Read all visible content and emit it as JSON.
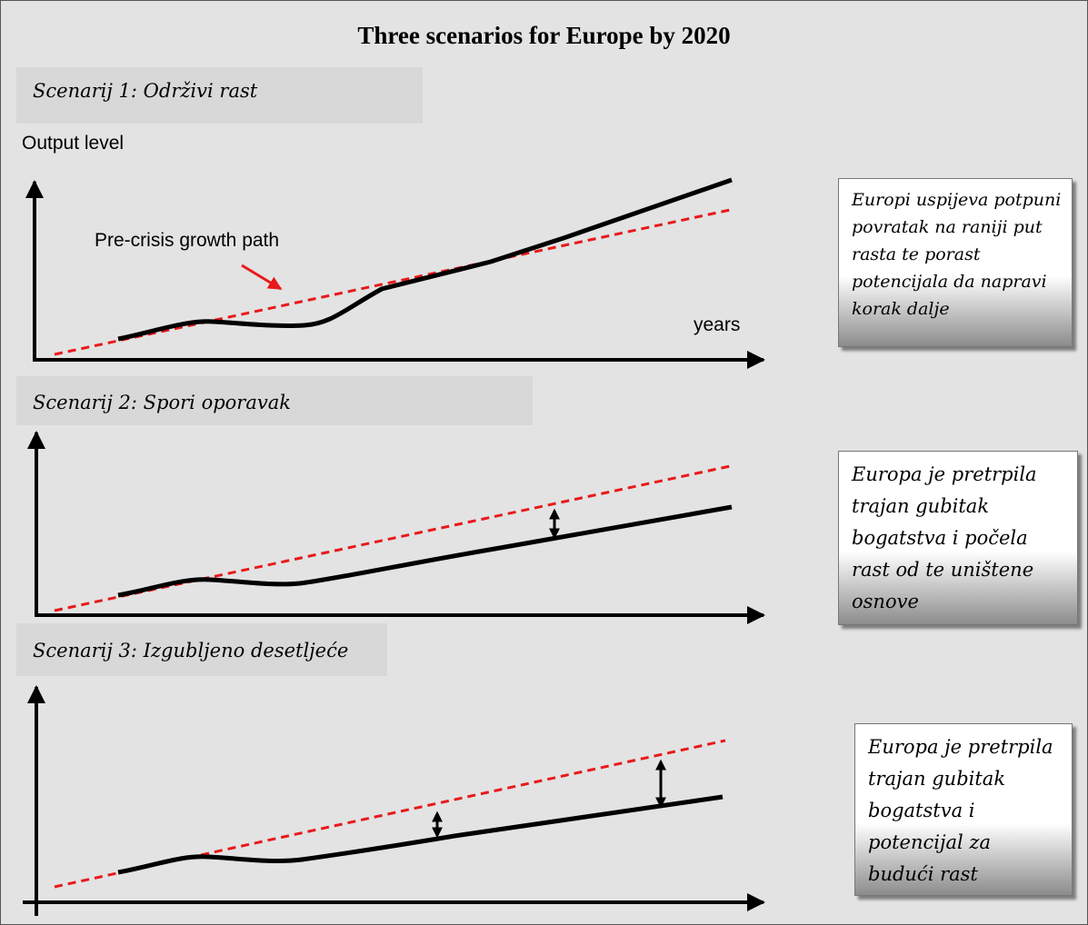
{
  "title": "Three scenarios for Europe by 2020",
  "scenarios": [
    {
      "label": "Scenarij 1: Održivi rast",
      "description": "Europi uspijeva potpuni povratak na raniji put rasta te porast potencijala da napravi korak dalje"
    },
    {
      "label": "Scenarij 2: Spori oporavak",
      "description": "Europa je pretrpila trajan gubitak bogatstva i počela rast od te uništene osnove"
    },
    {
      "label": "Scenarij 3: Izgubljeno desetljeće",
      "description": "Europa je pretrpila trajan gubitak bogatstva i potencijal za budući rast"
    }
  ],
  "axis": {
    "y_label": "Output level",
    "x_label": "years"
  },
  "annotation": {
    "pre_crisis": "Pre-crisis growth path"
  },
  "colors": {
    "pre_crisis_line": "#e8191b",
    "actual_line": "#000000",
    "background": "#e3e3e3"
  }
}
